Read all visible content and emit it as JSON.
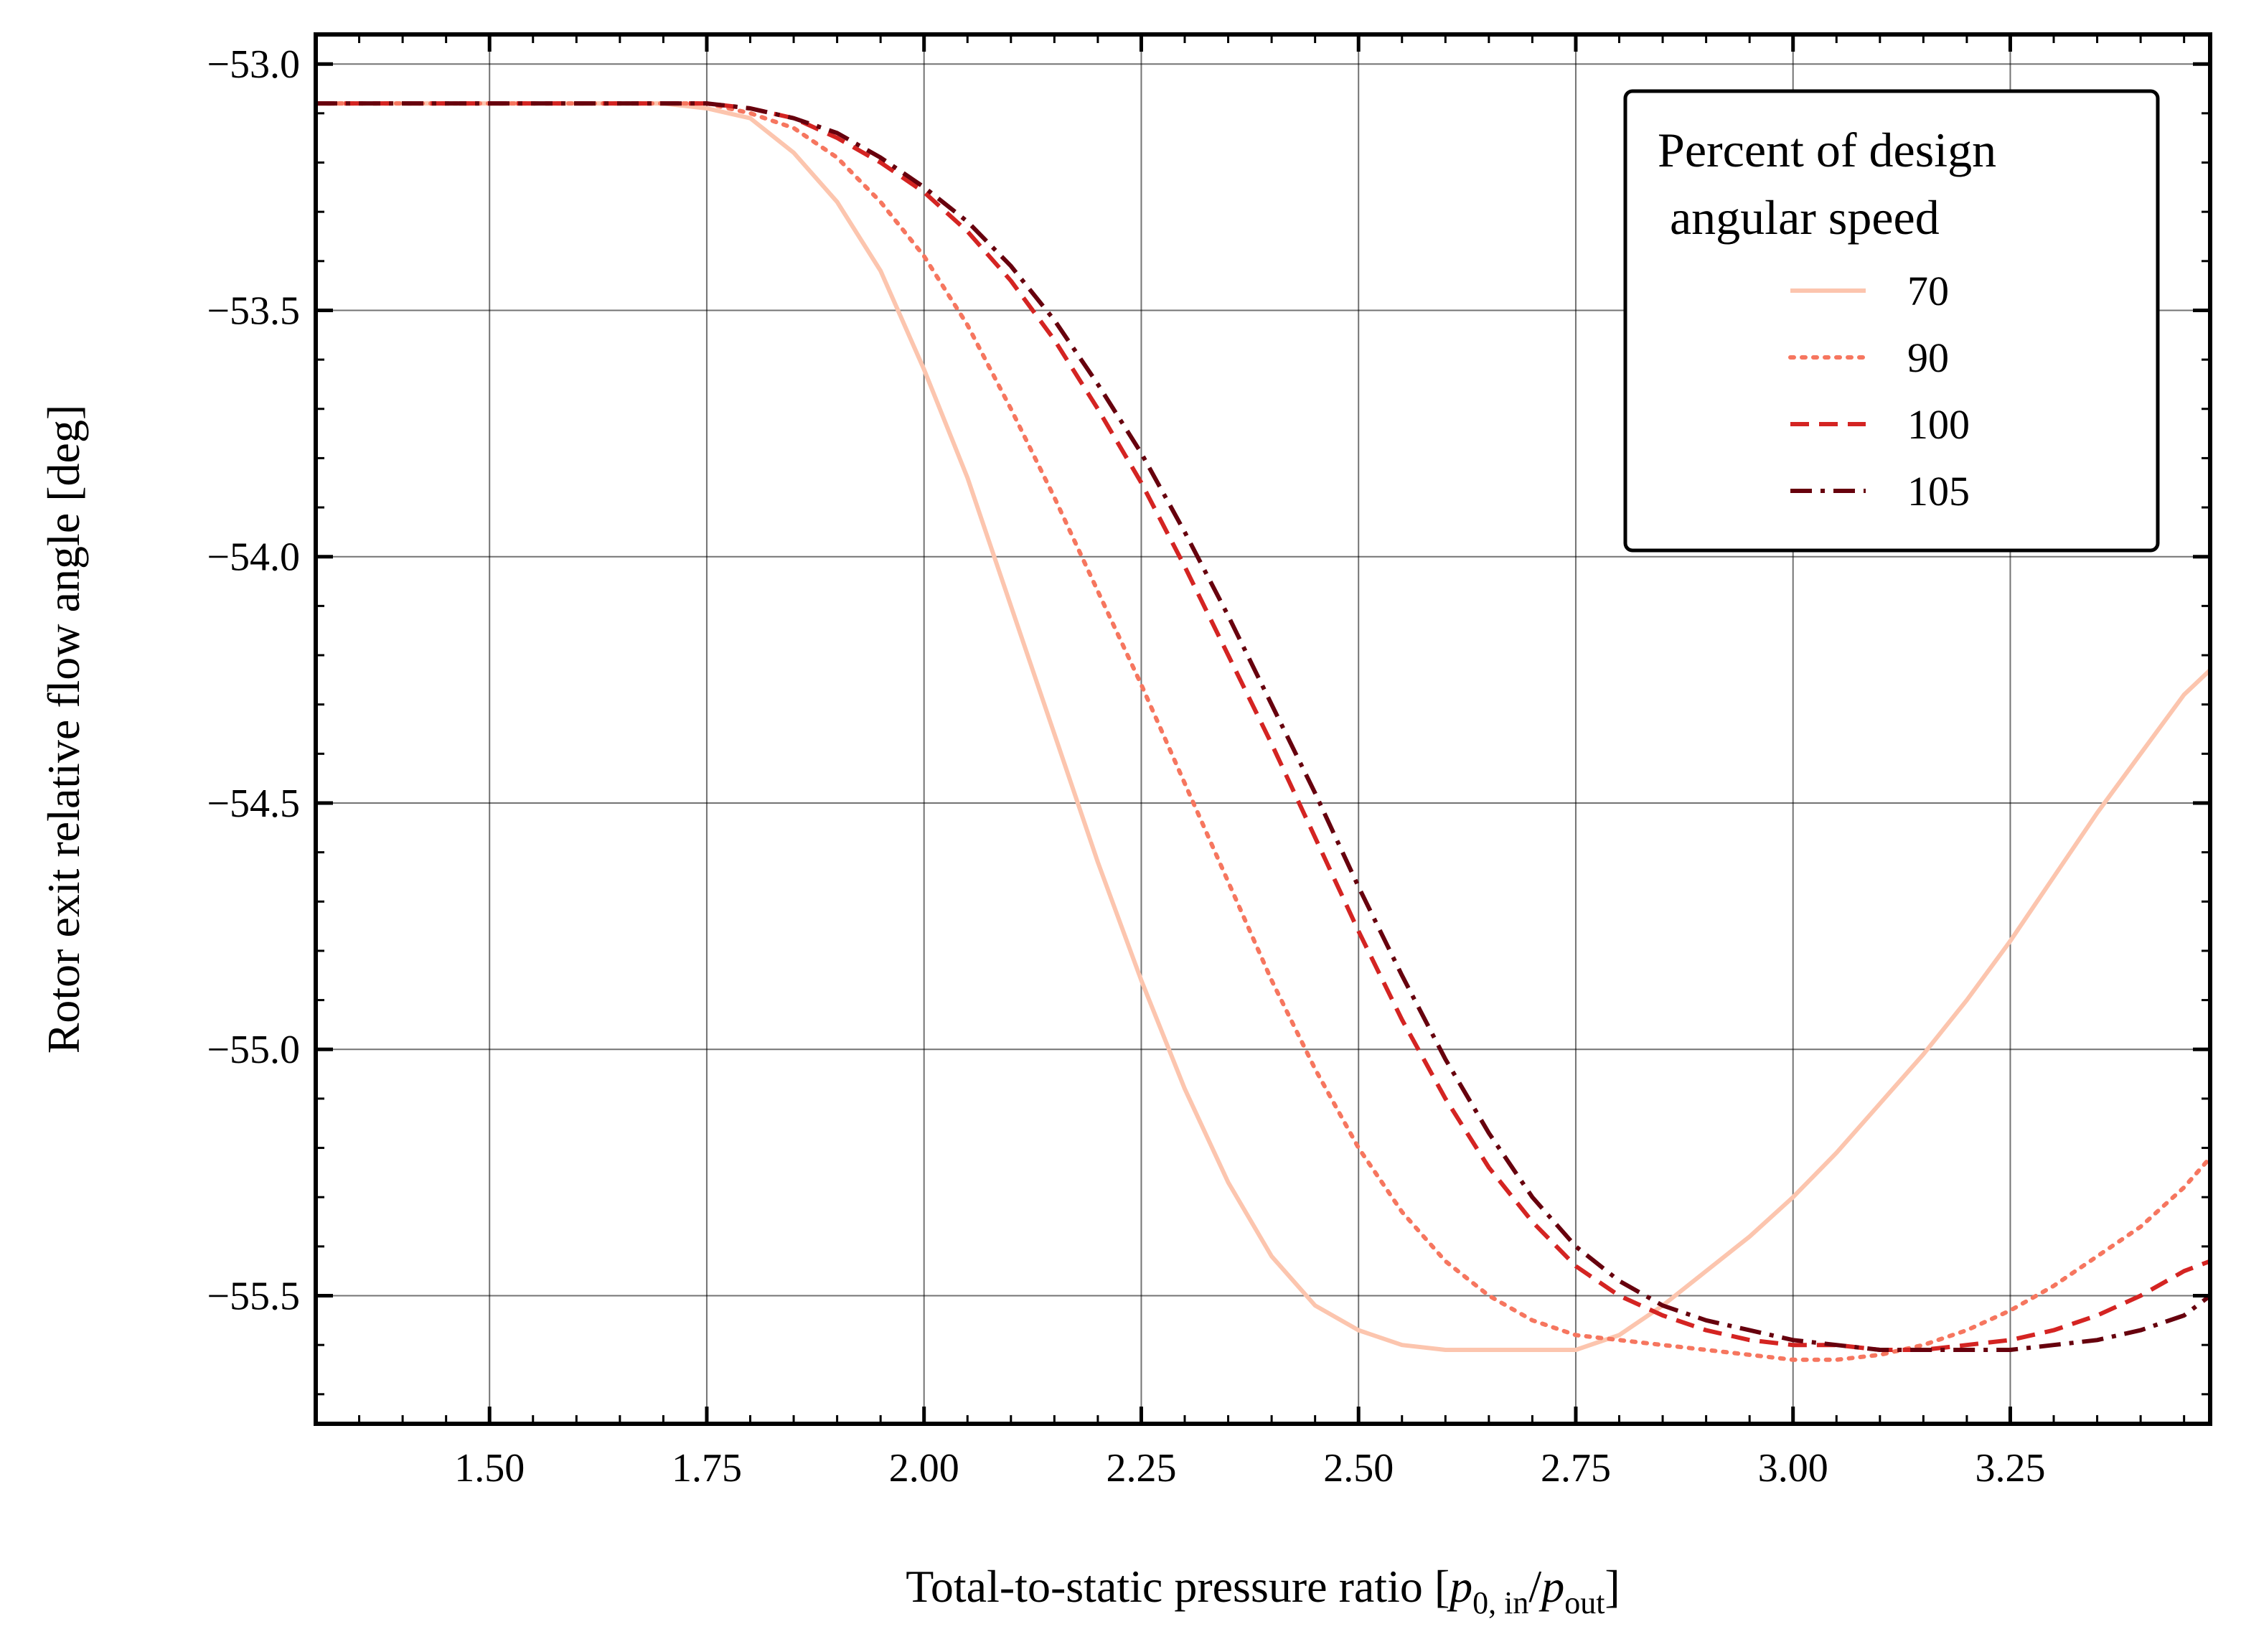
{
  "chart_data": {
    "type": "line",
    "title": "",
    "xlabel": "Total-to-static pressure ratio [p0, in/pout]",
    "xlabel_parts": {
      "prefix": "Total-to-static pressure ratio [",
      "var1": "p",
      "sub1": "0, in",
      "slash": "/",
      "var2": "p",
      "sub2": "out",
      "suffix": "]"
    },
    "ylabel": "Rotor exit relative flow angle [deg]",
    "xlim": [
      1.3,
      3.48
    ],
    "ylim": [
      -55.76,
      -52.94
    ],
    "xticks": [
      "1.50",
      "1.75",
      "2.00",
      "2.25",
      "2.50",
      "2.75",
      "3.00",
      "3.25"
    ],
    "xtick_values": [
      1.5,
      1.75,
      2.0,
      2.25,
      2.5,
      2.75,
      3.0,
      3.25
    ],
    "yticks": [
      "−53.0",
      "−53.5",
      "−54.0",
      "−54.5",
      "−55.0",
      "−55.5"
    ],
    "ytick_values": [
      -53.0,
      -53.5,
      -54.0,
      -54.5,
      -55.0,
      -55.5
    ],
    "grid": true,
    "legend": {
      "title_lines": [
        "Percent of design",
        " angular speed"
      ],
      "position": "top-right"
    },
    "series": [
      {
        "name": "70",
        "color": "#fcc5ae",
        "dash": "solid",
        "x": [
          1.3,
          1.5,
          1.7,
          1.75,
          1.8,
          1.85,
          1.9,
          1.95,
          2.0,
          2.05,
          2.1,
          2.15,
          2.2,
          2.25,
          2.3,
          2.35,
          2.4,
          2.45,
          2.5,
          2.55,
          2.6,
          2.65,
          2.7,
          2.75,
          2.8,
          2.85,
          2.9,
          2.95,
          3.0,
          3.05,
          3.1,
          3.15,
          3.2,
          3.25,
          3.3,
          3.35,
          3.4,
          3.45,
          3.48
        ],
        "y": [
          -53.08,
          -53.08,
          -53.08,
          -53.09,
          -53.11,
          -53.18,
          -53.28,
          -53.42,
          -53.62,
          -53.84,
          -54.1,
          -54.36,
          -54.62,
          -54.86,
          -55.08,
          -55.27,
          -55.42,
          -55.52,
          -55.57,
          -55.6,
          -55.61,
          -55.61,
          -55.61,
          -55.61,
          -55.58,
          -55.52,
          -55.45,
          -55.38,
          -55.3,
          -55.21,
          -55.11,
          -55.01,
          -54.9,
          -54.78,
          -54.65,
          -54.52,
          -54.4,
          -54.28,
          -54.23
        ]
      },
      {
        "name": "90",
        "color": "#f6765f",
        "dash": "dotted",
        "x": [
          1.3,
          1.5,
          1.7,
          1.75,
          1.8,
          1.85,
          1.9,
          1.95,
          2.0,
          2.05,
          2.1,
          2.15,
          2.2,
          2.25,
          2.3,
          2.35,
          2.4,
          2.45,
          2.5,
          2.55,
          2.6,
          2.65,
          2.7,
          2.75,
          2.8,
          2.85,
          2.9,
          2.95,
          3.0,
          3.05,
          3.1,
          3.15,
          3.2,
          3.25,
          3.3,
          3.35,
          3.4,
          3.45,
          3.48
        ],
        "y": [
          -53.08,
          -53.08,
          -53.08,
          -53.08,
          -53.1,
          -53.13,
          -53.19,
          -53.28,
          -53.39,
          -53.53,
          -53.7,
          -53.88,
          -54.07,
          -54.26,
          -54.46,
          -54.66,
          -54.86,
          -55.04,
          -55.2,
          -55.33,
          -55.43,
          -55.5,
          -55.55,
          -55.58,
          -55.59,
          -55.6,
          -55.61,
          -55.62,
          -55.63,
          -55.63,
          -55.62,
          -55.6,
          -55.57,
          -55.53,
          -55.48,
          -55.42,
          -55.36,
          -55.28,
          -55.22
        ]
      },
      {
        "name": "100",
        "color": "#d42422",
        "dash": "dashed",
        "x": [
          1.3,
          1.5,
          1.7,
          1.75,
          1.8,
          1.85,
          1.9,
          1.95,
          2.0,
          2.05,
          2.1,
          2.15,
          2.2,
          2.25,
          2.3,
          2.35,
          2.4,
          2.45,
          2.5,
          2.55,
          2.6,
          2.65,
          2.7,
          2.75,
          2.8,
          2.85,
          2.9,
          2.95,
          3.0,
          3.05,
          3.1,
          3.15,
          3.2,
          3.25,
          3.3,
          3.35,
          3.4,
          3.45,
          3.48
        ],
        "y": [
          -53.08,
          -53.08,
          -53.08,
          -53.08,
          -53.09,
          -53.11,
          -53.15,
          -53.2,
          -53.26,
          -53.34,
          -53.44,
          -53.56,
          -53.7,
          -53.85,
          -54.02,
          -54.2,
          -54.38,
          -54.57,
          -54.76,
          -54.94,
          -55.1,
          -55.24,
          -55.35,
          -55.44,
          -55.5,
          -55.54,
          -55.57,
          -55.59,
          -55.6,
          -55.6,
          -55.61,
          -55.61,
          -55.6,
          -55.59,
          -55.57,
          -55.54,
          -55.5,
          -55.45,
          -55.43
        ]
      },
      {
        "name": "105",
        "color": "#67000d",
        "dash": "dashdot",
        "x": [
          1.3,
          1.5,
          1.7,
          1.75,
          1.8,
          1.85,
          1.9,
          1.95,
          2.0,
          2.05,
          2.1,
          2.15,
          2.2,
          2.25,
          2.3,
          2.35,
          2.4,
          2.45,
          2.5,
          2.55,
          2.6,
          2.65,
          2.7,
          2.75,
          2.8,
          2.85,
          2.9,
          2.95,
          3.0,
          3.05,
          3.1,
          3.15,
          3.2,
          3.25,
          3.3,
          3.35,
          3.4,
          3.45,
          3.48
        ],
        "y": [
          -53.08,
          -53.08,
          -53.08,
          -53.08,
          -53.09,
          -53.11,
          -53.14,
          -53.19,
          -53.25,
          -53.32,
          -53.41,
          -53.52,
          -53.65,
          -53.79,
          -53.95,
          -54.12,
          -54.3,
          -54.48,
          -54.67,
          -54.85,
          -55.02,
          -55.17,
          -55.3,
          -55.4,
          -55.47,
          -55.52,
          -55.55,
          -55.57,
          -55.59,
          -55.6,
          -55.61,
          -55.61,
          -55.61,
          -55.61,
          -55.6,
          -55.59,
          -55.57,
          -55.54,
          -55.5
        ]
      }
    ]
  }
}
